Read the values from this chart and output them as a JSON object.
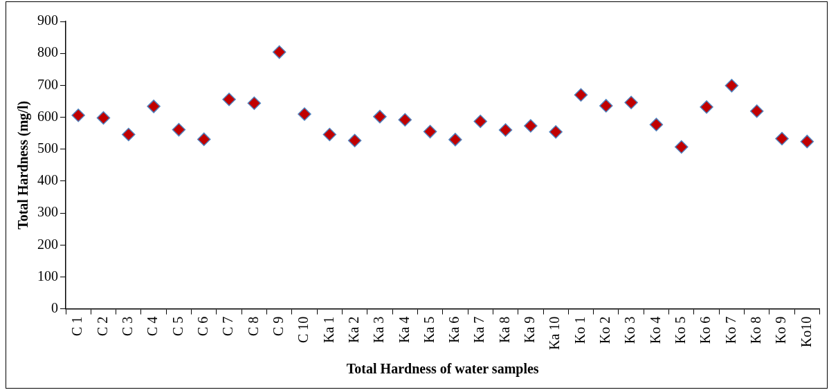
{
  "chart_data": {
    "type": "scatter",
    "xlabel": "Total Hardness of water samples",
    "ylabel": "Total Hardness (mg/l)",
    "categories": [
      "C 1",
      "C 2",
      "C 3",
      "C 4",
      "C 5",
      "C 6",
      "C 7",
      "C 8",
      "C 9",
      "C 10",
      "Ka 1",
      "Ka 2",
      "Ka 3",
      "Ka 4",
      "Ka 5",
      "Ka 6",
      "Ka 7",
      "Ka 8",
      "Ka 9",
      "Ka 10",
      "Ko 1",
      "Ko 2",
      "Ko 3",
      "Ko 4",
      "Ko 5",
      "Ko 6",
      "Ko 7",
      "Ko 8",
      "Ko 9",
      "Ko10"
    ],
    "series": [
      {
        "color": "#c00000",
        "values": [
          606,
          598,
          546,
          634,
          561,
          531,
          656,
          644,
          804,
          610,
          546,
          527,
          602,
          592,
          555,
          530,
          587,
          560,
          573,
          554,
          670,
          636,
          646,
          577,
          507,
          632,
          699,
          619,
          533,
          524
        ]
      }
    ],
    "ylim": [
      0,
      900
    ],
    "yticks": [
      0,
      100,
      200,
      300,
      400,
      500,
      600,
      700,
      800,
      900
    ],
    "grid": false,
    "legend": false,
    "marker": "diamond"
  }
}
